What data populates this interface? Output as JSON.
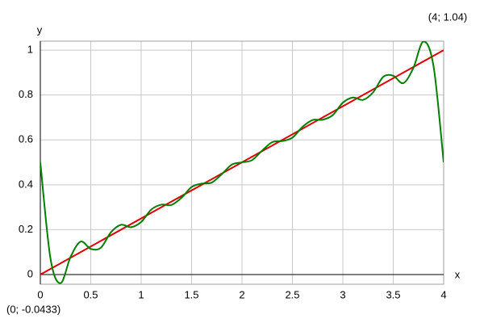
{
  "chart_data": {
    "type": "line",
    "x_label": "x",
    "y_label": "y",
    "annotations": [
      "(0; -0.0433)",
      "(4; 1.04)"
    ],
    "xlim": [
      0,
      4
    ],
    "ylim": [
      -0.0433,
      1.04
    ],
    "xticks": [
      0,
      0.5,
      1,
      1.5,
      2,
      2.5,
      3,
      3.5,
      4
    ],
    "yticks": [
      0,
      0.2,
      0.4,
      0.6,
      0.8,
      1
    ],
    "grid": true,
    "series": [
      {
        "color": "#e00000",
        "x": [
          0,
          4
        ],
        "values": [
          0,
          1
        ]
      },
      {
        "color": "#008000",
        "x": [
          0,
          0.1,
          0.2,
          0.3,
          0.4,
          0.5,
          0.6,
          0.7,
          0.8,
          0.9,
          1,
          1.1,
          1.2,
          1.3,
          1.4,
          1.5,
          1.6,
          1.7,
          1.8,
          1.9,
          2,
          2.1,
          2.2,
          2.3,
          2.4,
          2.5,
          2.6,
          2.7,
          2.8,
          2.9,
          3,
          3.1,
          3.2,
          3.3,
          3.4,
          3.5,
          3.6,
          3.7,
          3.8,
          3.9,
          4
        ],
        "values": [
          0.5,
          0.073,
          -0.0387,
          0.0787,
          0.1469,
          0.1141,
          0.1195,
          0.1881,
          0.2216,
          0.211,
          0.2342,
          0.2895,
          0.3114,
          0.3101,
          0.342,
          0.39,
          0.4052,
          0.4099,
          0.4475,
          0.4902,
          0.5,
          0.5098,
          0.5525,
          0.5901,
          0.5948,
          0.61,
          0.658,
          0.6886,
          0.6899,
          0.7105,
          0.7658,
          0.789,
          0.7784,
          0.8119,
          0.8805,
          0.8859,
          0.8531,
          0.9213,
          1.0387,
          0.927,
          0.5
        ]
      }
    ]
  }
}
